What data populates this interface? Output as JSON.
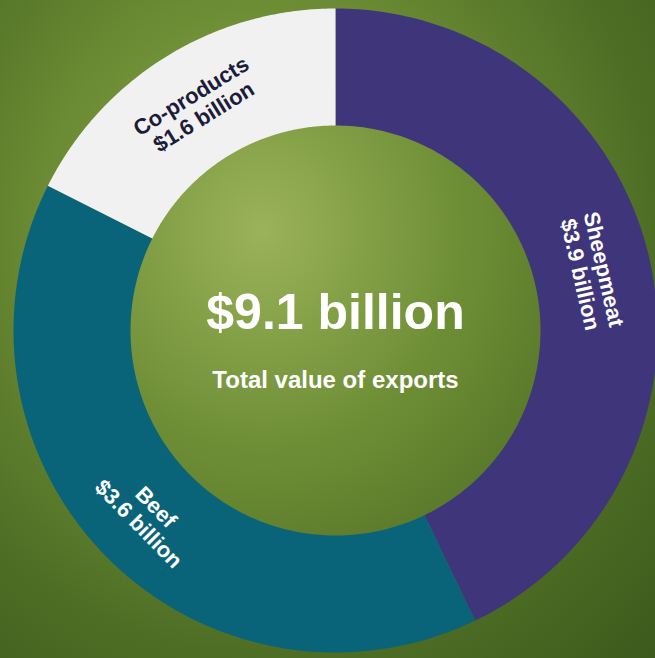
{
  "chart_data": {
    "type": "donut",
    "title": "Total value of exports",
    "total": 9.1,
    "total_label": "$9.1 billion",
    "categories": [
      "Sheepmeat",
      "Beef",
      "Co-products"
    ],
    "values": [
      3.9,
      3.6,
      1.6
    ],
    "value_labels": [
      "$3.9 billion",
      "$3.6 billion",
      "$1.6 billion"
    ],
    "colors": [
      "#3f357a",
      "#0a6479",
      "#f1f1f1"
    ],
    "data_labels": true
  }
}
